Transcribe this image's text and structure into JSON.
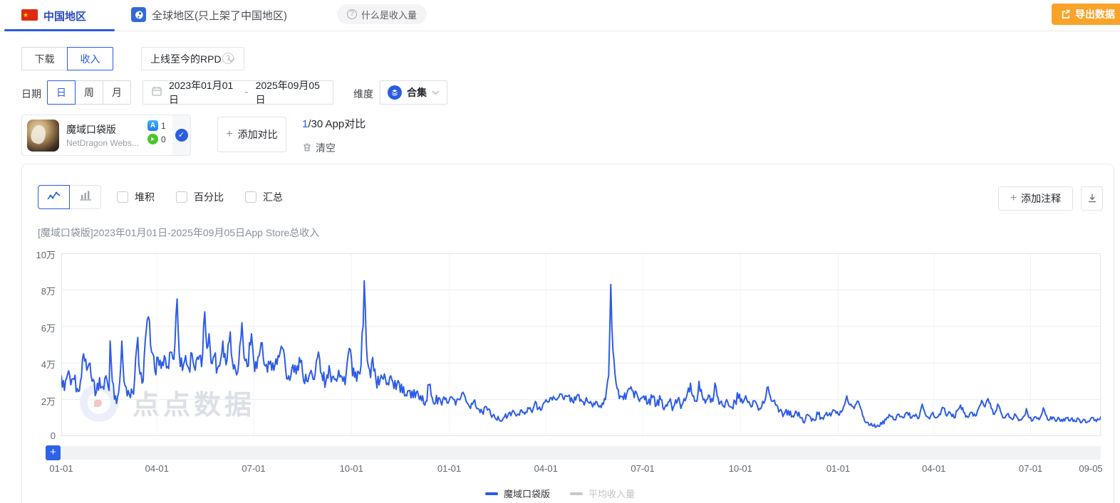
{
  "header": {
    "tabs": [
      {
        "label": "中国地区",
        "active": true
      },
      {
        "label": "全球地区(只上架了中国地区)",
        "active": false
      }
    ],
    "help_badge": "什么是收入量",
    "help_icon_glyph": "?",
    "export_button": "导出数据"
  },
  "metric_bar": {
    "download_label": "下载",
    "revenue_label": "收入",
    "revenue_active": true,
    "rpd_dropdown": "上线至今的RPD",
    "help_icon_glyph": "?"
  },
  "filter_bar": {
    "date_label": "日期",
    "granularity": [
      "日",
      "周",
      "月"
    ],
    "granularity_active": "日",
    "date_start": "2023年01月01日",
    "date_separator": "-",
    "date_end": "2025年09月05日",
    "dimension_label": "维度",
    "dimension_value": "合集"
  },
  "compare_bar": {
    "app_name": "魔域口袋版",
    "app_publisher": "NetDragon Webs...",
    "ios_count": "1",
    "android_count": "0",
    "ios_badge_glyph": "A",
    "check_glyph": "✓",
    "plus_glyph": "+",
    "add_compare": "添加对比",
    "compare_count": "1",
    "compare_rest": "/30 App对比",
    "clear_label": "清空"
  },
  "chart_toolbar": {
    "checkboxes": [
      "堆积",
      "百分比",
      "汇总"
    ],
    "plus_glyph": "+",
    "add_annotation": "添加注释",
    "zoom_plus_glyph": "+"
  },
  "chart_data": {
    "type": "line",
    "title": "[魔域口袋版]2023年01月01日-2025年09月05日App Store总收入",
    "watermark": "点点数据",
    "unit": "万",
    "y_max_wan": 10,
    "y_ticks": [
      "10万",
      "8万",
      "6万",
      "4万",
      "2万",
      "0"
    ],
    "total_days": 978,
    "x_ticks": [
      {
        "label": "01-01",
        "day": 0
      },
      {
        "label": "04-01",
        "day": 90
      },
      {
        "label": "07-01",
        "day": 181
      },
      {
        "label": "10-01",
        "day": 273
      },
      {
        "label": "01-01",
        "day": 365
      },
      {
        "label": "04-01",
        "day": 456
      },
      {
        "label": "07-01",
        "day": 547
      },
      {
        "label": "10-01",
        "day": 639
      },
      {
        "label": "01-01",
        "day": 731
      },
      {
        "label": "04-01",
        "day": 821
      },
      {
        "label": "07-01",
        "day": 912
      },
      {
        "label": "09-05",
        "day": 978
      }
    ],
    "legend": [
      {
        "label": "魔域口袋版",
        "color": "#2b5ce2",
        "text_color": "#33363c",
        "active": true
      },
      {
        "label": "平均收入量",
        "color": "#c4c8ce",
        "text_color": "#c0c4ca",
        "active": false
      }
    ],
    "line_color": "#2d5ce6",
    "grid_color": "#ebedf0",
    "keypoints": [
      [
        0,
        3.3
      ],
      [
        3,
        2.5
      ],
      [
        6,
        3.4
      ],
      [
        9,
        2.8
      ],
      [
        12,
        3.1
      ],
      [
        15,
        2.6
      ],
      [
        18,
        3.0
      ],
      [
        21,
        4.5
      ],
      [
        24,
        3.6
      ],
      [
        27,
        4.0
      ],
      [
        30,
        3.1
      ],
      [
        33,
        2.4
      ],
      [
        36,
        3.2
      ],
      [
        39,
        2.7
      ],
      [
        42,
        3.3
      ],
      [
        45,
        2.5
      ],
      [
        46,
        5.2
      ],
      [
        48,
        3.0
      ],
      [
        51,
        2.2
      ],
      [
        54,
        2.4
      ],
      [
        57,
        5.2
      ],
      [
        59,
        3.0
      ],
      [
        62,
        2.2
      ],
      [
        65,
        2.1
      ],
      [
        68,
        2.3
      ],
      [
        72,
        5.4
      ],
      [
        74,
        3.4
      ],
      [
        77,
        3.0
      ],
      [
        80,
        5.8
      ],
      [
        83,
        6.3
      ],
      [
        85,
        4.6
      ],
      [
        88,
        3.6
      ],
      [
        91,
        4.3
      ],
      [
        94,
        3.7
      ],
      [
        97,
        4.4
      ],
      [
        100,
        3.8
      ],
      [
        103,
        4.6
      ],
      [
        106,
        4.2
      ],
      [
        109,
        7.5
      ],
      [
        111,
        4.5
      ],
      [
        114,
        3.6
      ],
      [
        117,
        4.4
      ],
      [
        120,
        3.7
      ],
      [
        123,
        4.5
      ],
      [
        126,
        3.6
      ],
      [
        129,
        4.2
      ],
      [
        132,
        3.8
      ],
      [
        135,
        6.8
      ],
      [
        137,
        4.8
      ],
      [
        139,
        5.6
      ],
      [
        141,
        4.0
      ],
      [
        144,
        4.4
      ],
      [
        147,
        3.7
      ],
      [
        150,
        4.2
      ],
      [
        152,
        5.2
      ],
      [
        155,
        3.9
      ],
      [
        159,
        5.7
      ],
      [
        161,
        4.1
      ],
      [
        164,
        3.6
      ],
      [
        167,
        4.0
      ],
      [
        170,
        6.2
      ],
      [
        172,
        4.3
      ],
      [
        175,
        3.8
      ],
      [
        179,
        5.6
      ],
      [
        181,
        4.2
      ],
      [
        184,
        3.7
      ],
      [
        188,
        5.1
      ],
      [
        191,
        3.9
      ],
      [
        194,
        3.5
      ],
      [
        197,
        4.1
      ],
      [
        200,
        3.6
      ],
      [
        204,
        4.4
      ],
      [
        208,
        4.8
      ],
      [
        211,
        3.7
      ],
      [
        214,
        3.3
      ],
      [
        218,
        3.9
      ],
      [
        221,
        3.4
      ],
      [
        224,
        4.3
      ],
      [
        227,
        3.5
      ],
      [
        231,
        3.0
      ],
      [
        235,
        3.6
      ],
      [
        238,
        3.1
      ],
      [
        242,
        4.6
      ],
      [
        245,
        3.4
      ],
      [
        249,
        3.0
      ],
      [
        253,
        3.5
      ],
      [
        257,
        3.1
      ],
      [
        261,
        3.6
      ],
      [
        265,
        3.0
      ],
      [
        268,
        3.4
      ],
      [
        271,
        4.8
      ],
      [
        274,
        3.3
      ],
      [
        278,
        3.0
      ],
      [
        281,
        3.4
      ],
      [
        284,
        6.0
      ],
      [
        285,
        8.5
      ],
      [
        287,
        5.0
      ],
      [
        289,
        3.8
      ],
      [
        291,
        3.2
      ],
      [
        293,
        4.3
      ],
      [
        296,
        3.1
      ],
      [
        299,
        2.8
      ],
      [
        302,
        3.2
      ],
      [
        304,
        3.4
      ],
      [
        307,
        2.9
      ],
      [
        310,
        3.3
      ],
      [
        313,
        2.6
      ],
      [
        316,
        2.9
      ],
      [
        319,
        2.4
      ],
      [
        322,
        2.7
      ],
      [
        325,
        2.2
      ],
      [
        328,
        2.5
      ],
      [
        331,
        2.1
      ],
      [
        334,
        2.4
      ],
      [
        337,
        2.0
      ],
      [
        340,
        2.2
      ],
      [
        343,
        1.9
      ],
      [
        346,
        2.8
      ],
      [
        349,
        2.1
      ],
      [
        352,
        1.8
      ],
      [
        355,
        2.1
      ],
      [
        358,
        1.7
      ],
      [
        361,
        2.0
      ],
      [
        364,
        1.8
      ],
      [
        368,
        2.1
      ],
      [
        371,
        1.7
      ],
      [
        374,
        2.0
      ],
      [
        378,
        2.4
      ],
      [
        381,
        1.9
      ],
      [
        384,
        1.6
      ],
      [
        388,
        1.9
      ],
      [
        392,
        1.5
      ],
      [
        396,
        1.3
      ],
      [
        400,
        1.6
      ],
      [
        404,
        1.2
      ],
      [
        408,
        1.0
      ],
      [
        412,
        0.9
      ],
      [
        416,
        1.0
      ],
      [
        420,
        1.1
      ],
      [
        424,
        1.3
      ],
      [
        428,
        1.1
      ],
      [
        432,
        1.4
      ],
      [
        436,
        1.2
      ],
      [
        440,
        1.5
      ],
      [
        443,
        1.3
      ],
      [
        446,
        1.9
      ],
      [
        449,
        1.5
      ],
      [
        453,
        1.7
      ],
      [
        457,
        1.9
      ],
      [
        461,
        2.1
      ],
      [
        465,
        2.0
      ],
      [
        469,
        2.3
      ],
      [
        473,
        2.0
      ],
      [
        477,
        2.2
      ],
      [
        481,
        1.9
      ],
      [
        485,
        2.2
      ],
      [
        489,
        2.0
      ],
      [
        492,
        1.7
      ],
      [
        494,
        2.1
      ],
      [
        497,
        1.8
      ],
      [
        500,
        1.6
      ],
      [
        503,
        1.9
      ],
      [
        506,
        1.6
      ],
      [
        509,
        1.8
      ],
      [
        512,
        2.0
      ],
      [
        515,
        3.3
      ],
      [
        517,
        8.3
      ],
      [
        518,
        6.0
      ],
      [
        519,
        4.7
      ],
      [
        521,
        3.4
      ],
      [
        523,
        2.6
      ],
      [
        526,
        2.2
      ],
      [
        529,
        2.0
      ],
      [
        532,
        2.3
      ],
      [
        536,
        2.7
      ],
      [
        539,
        2.1
      ],
      [
        541,
        2.4
      ],
      [
        544,
        1.9
      ],
      [
        548,
        2.2
      ],
      [
        552,
        1.8
      ],
      [
        556,
        2.1
      ],
      [
        560,
        1.7
      ],
      [
        564,
        2.0
      ],
      [
        568,
        1.6
      ],
      [
        572,
        1.9
      ],
      [
        576,
        1.6
      ],
      [
        580,
        2.0
      ],
      [
        584,
        1.7
      ],
      [
        588,
        2.1
      ],
      [
        592,
        2.9
      ],
      [
        595,
        2.2
      ],
      [
        598,
        1.9
      ],
      [
        600,
        3.0
      ],
      [
        603,
        2.2
      ],
      [
        606,
        1.8
      ],
      [
        610,
        2.2
      ],
      [
        613,
        1.9
      ],
      [
        615,
        2.9
      ],
      [
        618,
        2.1
      ],
      [
        622,
        1.7
      ],
      [
        626,
        2.0
      ],
      [
        630,
        1.6
      ],
      [
        634,
        1.9
      ],
      [
        638,
        2.3
      ],
      [
        641,
        1.8
      ],
      [
        645,
        2.0
      ],
      [
        649,
        1.6
      ],
      [
        653,
        1.9
      ],
      [
        657,
        1.5
      ],
      [
        661,
        1.8
      ],
      [
        663,
        2.2
      ],
      [
        665,
        2.7
      ],
      [
        667,
        2.2
      ],
      [
        669,
        1.9
      ],
      [
        672,
        1.7
      ],
      [
        676,
        1.4
      ],
      [
        680,
        1.2
      ],
      [
        684,
        1.4
      ],
      [
        688,
        1.1
      ],
      [
        692,
        1.3
      ],
      [
        696,
        1.0
      ],
      [
        700,
        0.9
      ],
      [
        704,
        1.1
      ],
      [
        708,
        0.9
      ],
      [
        712,
        1.2
      ],
      [
        716,
        1.0
      ],
      [
        720,
        1.3
      ],
      [
        724,
        1.1
      ],
      [
        728,
        1.4
      ],
      [
        731,
        1.2
      ],
      [
        735,
        1.4
      ],
      [
        739,
        2.2
      ],
      [
        742,
        1.7
      ],
      [
        746,
        1.5
      ],
      [
        750,
        1.9
      ],
      [
        753,
        1.4
      ],
      [
        756,
        0.8
      ],
      [
        760,
        0.6
      ],
      [
        764,
        0.55
      ],
      [
        768,
        0.6
      ],
      [
        772,
        0.65
      ],
      [
        776,
        0.9
      ],
      [
        780,
        1.1
      ],
      [
        784,
        0.9
      ],
      [
        788,
        1.2
      ],
      [
        792,
        1.0
      ],
      [
        796,
        1.3
      ],
      [
        800,
        1.0
      ],
      [
        804,
        1.2
      ],
      [
        807,
        1.0
      ],
      [
        810,
        1.75
      ],
      [
        813,
        1.2
      ],
      [
        816,
        1.0
      ],
      [
        820,
        1.3
      ],
      [
        823,
        1.0
      ],
      [
        826,
        1.2
      ],
      [
        830,
        1.55
      ],
      [
        833,
        1.1
      ],
      [
        836,
        1.3
      ],
      [
        840,
        1.0
      ],
      [
        843,
        1.4
      ],
      [
        846,
        1.7
      ],
      [
        849,
        1.3
      ],
      [
        852,
        1.1
      ],
      [
        856,
        1.3
      ],
      [
        860,
        1.1
      ],
      [
        863,
        1.5
      ],
      [
        866,
        1.95
      ],
      [
        869,
        1.6
      ],
      [
        872,
        2.05
      ],
      [
        875,
        1.5
      ],
      [
        878,
        1.2
      ],
      [
        881,
        1.75
      ],
      [
        884,
        1.3
      ],
      [
        887,
        1.0
      ],
      [
        890,
        1.2
      ],
      [
        894,
        0.95
      ],
      [
        898,
        1.15
      ],
      [
        902,
        0.9
      ],
      [
        906,
        1.1
      ],
      [
        908,
        1.5
      ],
      [
        911,
        1.0
      ],
      [
        914,
        0.85
      ],
      [
        917,
        1.05
      ],
      [
        920,
        0.9
      ],
      [
        924,
        1.55
      ],
      [
        927,
        1.1
      ],
      [
        930,
        0.9
      ],
      [
        933,
        1.05
      ],
      [
        936,
        0.8
      ],
      [
        939,
        0.95
      ],
      [
        942,
        0.8
      ],
      [
        945,
        1.0
      ],
      [
        948,
        0.85
      ],
      [
        951,
        1.0
      ],
      [
        954,
        0.8
      ],
      [
        957,
        0.95
      ],
      [
        960,
        0.75
      ],
      [
        963,
        0.9
      ],
      [
        966,
        0.8
      ],
      [
        969,
        1.0
      ],
      [
        972,
        0.85
      ],
      [
        975,
        0.95
      ],
      [
        978,
        1.05
      ]
    ],
    "noise_bands": [
      [
        44,
        0.45
      ],
      [
        299,
        0.5
      ],
      [
        364,
        0.35
      ],
      [
        439,
        0.18
      ],
      [
        511,
        0.2
      ],
      [
        523,
        0.15
      ],
      [
        644,
        0.28
      ],
      [
        734,
        0.2
      ],
      [
        979,
        0.13
      ]
    ]
  }
}
